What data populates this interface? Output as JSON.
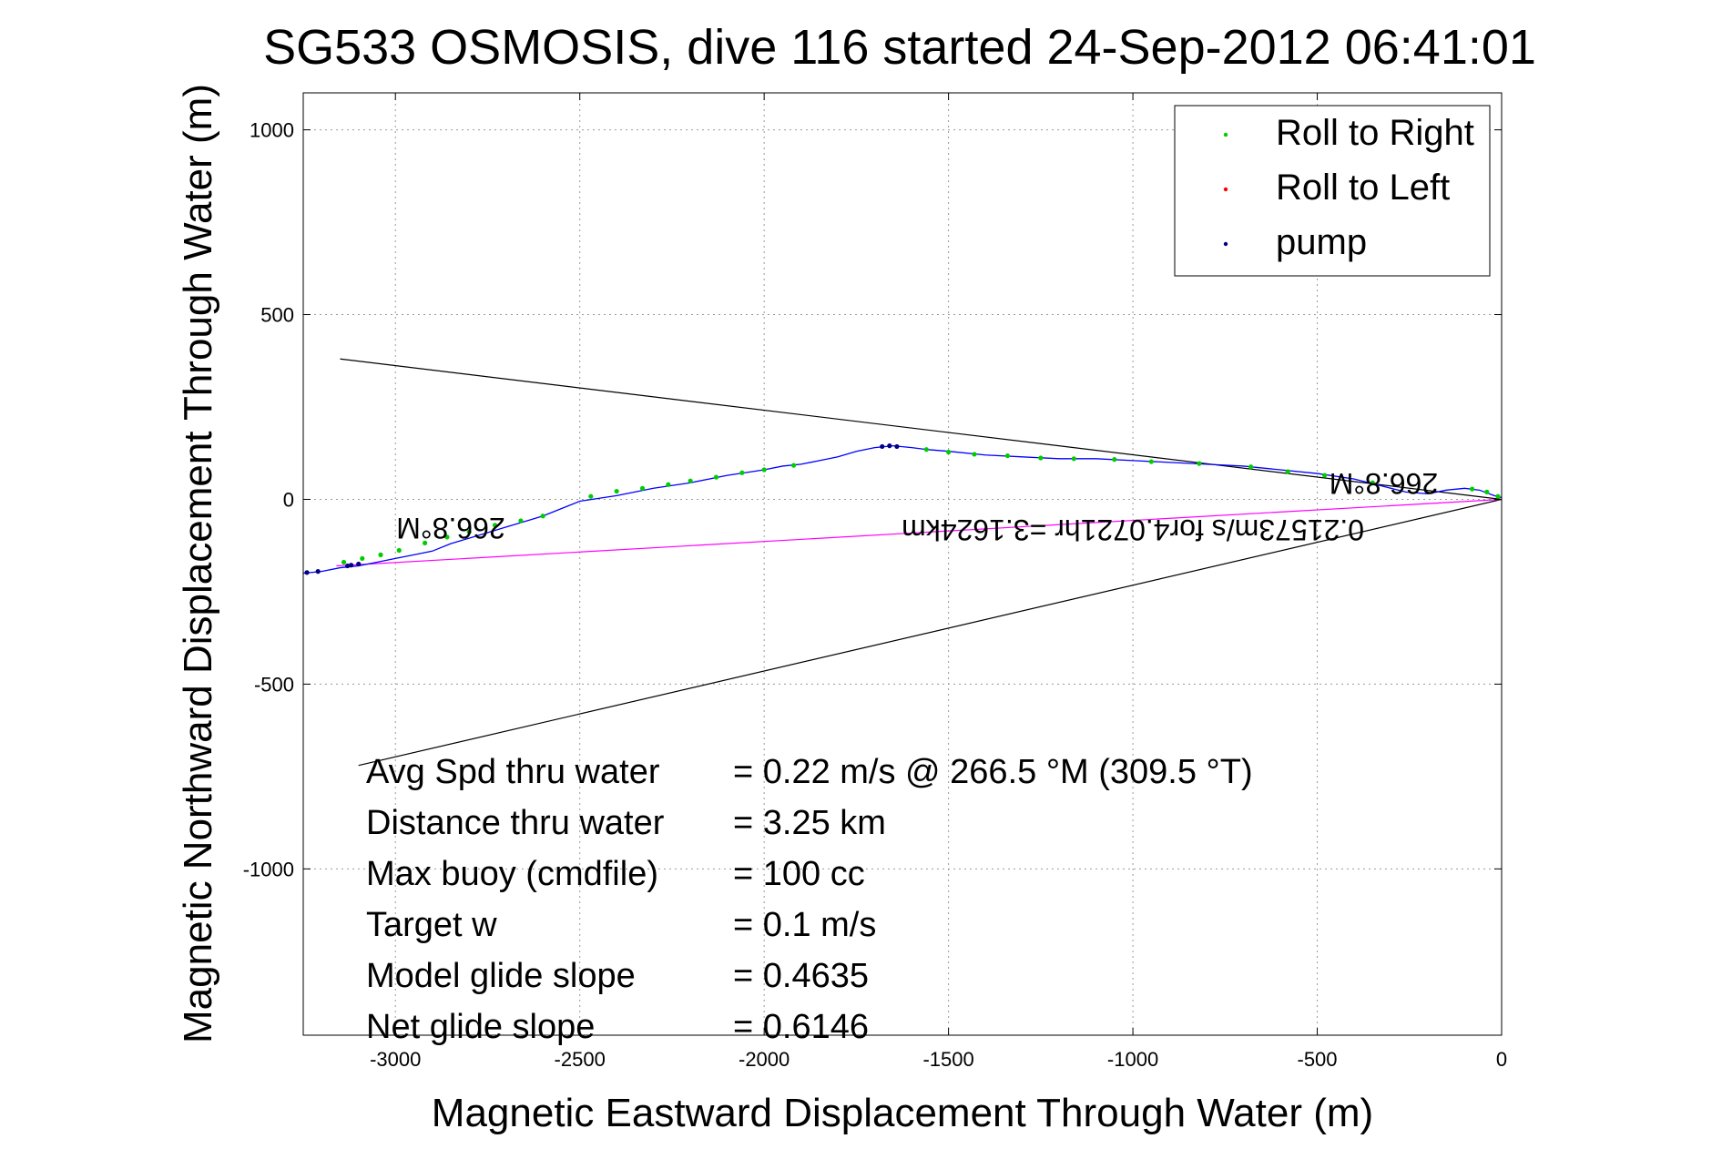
{
  "chart_data": {
    "type": "line",
    "title": "SG533 OSMOSIS, dive 116 started 24-Sep-2012 06:41:01",
    "xlabel": "Magnetic Eastward Displacement Through Water (m)",
    "ylabel": "Magnetic Northward Displacement Through Water (m)",
    "xlim": [
      -3250,
      0
    ],
    "ylim": [
      -1450,
      1100
    ],
    "x_ticks": [
      -3000,
      -2500,
      -2000,
      -1500,
      -1000,
      -500,
      0
    ],
    "y_ticks": [
      1000,
      500,
      0,
      -500,
      -1000
    ],
    "grid": true,
    "legend_placement": "top-right",
    "colors": {
      "track": "#0000ff",
      "roll_right": "#00cc00",
      "roll_left": "#ff0000",
      "pump": "#000080",
      "mean_vector": "#ff00ff",
      "lines": "#000000",
      "grid": "#999999"
    },
    "legend": [
      {
        "label": "Roll to Right",
        "color": "#00cc00"
      },
      {
        "label": "Roll to Left",
        "color": "#ff0000"
      },
      {
        "label": "pump",
        "color": "#000080"
      }
    ],
    "series": [
      {
        "name": "",
        "role": "track",
        "color": "#0000ff",
        "x": [
          0,
          -20,
          -60,
          -100,
          -150,
          -200,
          -260,
          -320,
          -400,
          -500,
          -600,
          -700,
          -800,
          -900,
          -1000,
          -1100,
          -1200,
          -1300,
          -1400,
          -1500,
          -1560,
          -1600,
          -1650,
          -1700,
          -1750,
          -1800,
          -1850,
          -1900,
          -1950,
          -2000,
          -2100,
          -2200,
          -2300,
          -2400,
          -2500,
          -2550,
          -2600,
          -2650,
          -2700,
          -2750,
          -2800,
          -2850,
          -2900,
          -2950,
          -3000,
          -3050,
          -3100,
          -3150,
          -3200,
          -3250
        ],
        "y": [
          5,
          10,
          25,
          30,
          25,
          15,
          20,
          35,
          55,
          70,
          80,
          90,
          95,
          100,
          105,
          110,
          110,
          115,
          120,
          130,
          135,
          140,
          145,
          140,
          130,
          115,
          105,
          95,
          90,
          80,
          65,
          45,
          30,
          10,
          -5,
          -25,
          -45,
          -60,
          -75,
          -90,
          -105,
          -120,
          -140,
          -150,
          -160,
          -170,
          -180,
          -185,
          -195,
          -200
        ]
      },
      {
        "name": "Roll to Right",
        "role": "markers",
        "color": "#00cc00",
        "x": [
          -10,
          -40,
          -80,
          -350,
          -480,
          -580,
          -680,
          -820,
          -950,
          -1050,
          -1160,
          -1250,
          -1340,
          -1430,
          -1500,
          -1560,
          -1920,
          -2000,
          -2060,
          -2130,
          -2200,
          -2260,
          -2330,
          -2400,
          -2470,
          -2600,
          -2660,
          -2730,
          -2800,
          -2860,
          -2920,
          -2990,
          -3040,
          -3090,
          -3140
        ],
        "y": [
          8,
          20,
          28,
          45,
          65,
          75,
          88,
          97,
          102,
          108,
          110,
          112,
          118,
          122,
          128,
          135,
          92,
          80,
          72,
          60,
          50,
          40,
          30,
          22,
          8,
          -45,
          -58,
          -70,
          -88,
          -102,
          -118,
          -138,
          -150,
          -160,
          -170
        ]
      },
      {
        "name": "pump",
        "role": "markers",
        "color": "#000080",
        "x": [
          -1640,
          -1660,
          -1680,
          -3100,
          -3120,
          -3130,
          -3210,
          -3240
        ],
        "y": [
          143,
          145,
          143,
          -175,
          -178,
          -180,
          -195,
          -198
        ]
      }
    ],
    "reference_lines": [
      {
        "name": "",
        "color": "#000000",
        "x": [
          0,
          -3150
        ],
        "y": [
          0,
          380
        ]
      },
      {
        "name": "",
        "color": "#000000",
        "x": [
          0,
          -3100
        ],
        "y": [
          0,
          -720
        ]
      },
      {
        "name": "",
        "color": "#ff00ff",
        "x": [
          0,
          -3160
        ],
        "y": [
          0,
          -180
        ]
      }
    ],
    "annotations": [
      {
        "text": "266.8°M",
        "x": -2850,
        "y": -50,
        "rotation": 180
      },
      {
        "text": "266.8°M",
        "x": -320,
        "y": 70,
        "rotation": 180
      },
      {
        "text": "0.21573m/s for4.0721hr =3.1624km",
        "x": -1000,
        "y": -55,
        "rotation": 180
      }
    ],
    "stats": [
      {
        "label": "Avg Spd thru water",
        "value": "=  0.22 m/s @ 266.5 °M (309.5 °T)"
      },
      {
        "label": "Distance thru water",
        "value": "=  3.25 km"
      },
      {
        "label": "Max buoy (cmdfile)",
        "value": "= 100 cc"
      },
      {
        "label": "Target w",
        "value": "= 0.1 m/s"
      },
      {
        "label": "Model glide slope",
        "value": "= 0.4635"
      },
      {
        "label": "Net glide slope",
        "value": "= 0.6146"
      }
    ]
  }
}
